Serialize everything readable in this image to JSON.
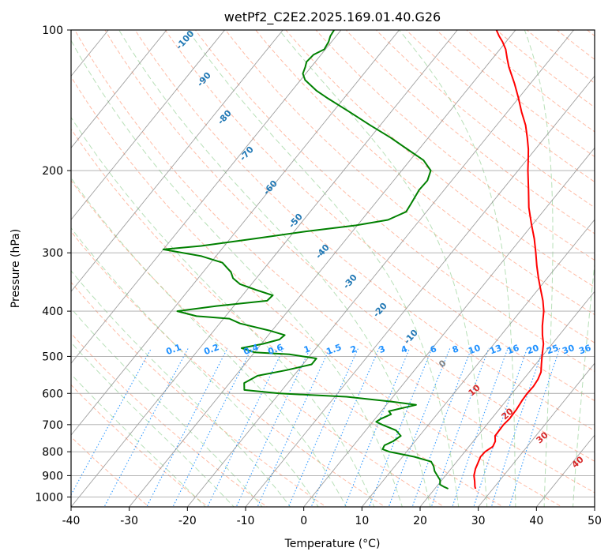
{
  "title": "wetPf2_C2E2.2025.169.01.40.G26",
  "xlabel": "Temperature (°C)",
  "ylabel": "Pressure (hPa)",
  "chart_data": {
    "type": "line",
    "diagram": "skew-T log-P",
    "title": "wetPf2_C2E2.2025.169.01.40.G26",
    "xlabel": "Temperature (°C)",
    "ylabel": "Pressure (hPa)",
    "xlim": [
      -40,
      50
    ],
    "ylim": [
      1050,
      100
    ],
    "yscale": "log",
    "grid": true,
    "x_ticks": [
      -40,
      -30,
      -20,
      -10,
      0,
      10,
      20,
      30,
      40,
      50
    ],
    "y_ticks": [
      1000,
      900,
      800,
      700,
      600,
      500,
      400,
      300,
      200,
      100
    ],
    "colors": {
      "temperature": "#ff0000",
      "dewpoint": "#008000",
      "isotherm": "#808080",
      "dry_adiabat": "#ff9f80",
      "moist_adiabat": "#88cc88",
      "mixing_ratio": "#1e90ff",
      "isobar": "#a0a0a0",
      "dry_label": "#d62728",
      "moist_label": "#1f77b4",
      "moist_label_grey": "#808080",
      "mixing_label": "#1e90ff"
    },
    "series": [
      {
        "key": "temperature",
        "points": [
          [
            960,
            27.0
          ],
          [
            950,
            26.6
          ],
          [
            925,
            25.8
          ],
          [
            900,
            24.9
          ],
          [
            870,
            24.2
          ],
          [
            850,
            23.9
          ],
          [
            820,
            23.4
          ],
          [
            800,
            23.5
          ],
          [
            780,
            24.1
          ],
          [
            760,
            23.8
          ],
          [
            740,
            23.0
          ],
          [
            700,
            22.9
          ],
          [
            680,
            23.1
          ],
          [
            650,
            23.0
          ],
          [
            620,
            22.7
          ],
          [
            600,
            22.6
          ],
          [
            580,
            22.7
          ],
          [
            560,
            22.5
          ],
          [
            540,
            22.0
          ],
          [
            520,
            21.0
          ],
          [
            500,
            20.0
          ],
          [
            470,
            18.5
          ],
          [
            450,
            17.1
          ],
          [
            430,
            15.8
          ],
          [
            400,
            14.0
          ],
          [
            380,
            12.4
          ],
          [
            360,
            10.5
          ],
          [
            340,
            8.5
          ],
          [
            320,
            6.5
          ],
          [
            300,
            4.5
          ],
          [
            280,
            2.3
          ],
          [
            260,
            -0.3
          ],
          [
            240,
            -3.0
          ],
          [
            220,
            -5.5
          ],
          [
            200,
            -8.3
          ],
          [
            190,
            -9.7
          ],
          [
            180,
            -11.2
          ],
          [
            170,
            -13.0
          ],
          [
            160,
            -15.0
          ],
          [
            150,
            -17.5
          ],
          [
            140,
            -20.0
          ],
          [
            130,
            -22.8
          ],
          [
            120,
            -26.0
          ],
          [
            115,
            -27.5
          ],
          [
            110,
            -29.0
          ],
          [
            106,
            -30.6
          ],
          [
            103,
            -32.0
          ],
          [
            100,
            -33.3
          ]
        ]
      },
      {
        "key": "dewpoint",
        "points": [
          [
            960,
            22.3
          ],
          [
            950,
            21.2
          ],
          [
            940,
            20.3
          ],
          [
            920,
            19.7
          ],
          [
            900,
            18.6
          ],
          [
            880,
            17.5
          ],
          [
            860,
            16.7
          ],
          [
            840,
            15.6
          ],
          [
            820,
            12.0
          ],
          [
            800,
            7.0
          ],
          [
            790,
            5.5
          ],
          [
            775,
            5.3
          ],
          [
            760,
            6.2
          ],
          [
            740,
            6.8
          ],
          [
            720,
            5.2
          ],
          [
            700,
            2.0
          ],
          [
            690,
            0.6
          ],
          [
            680,
            1.0
          ],
          [
            665,
            2.1
          ],
          [
            655,
            1.3
          ],
          [
            645,
            3.2
          ],
          [
            635,
            5.1
          ],
          [
            625,
            0.5
          ],
          [
            610,
            -8.0
          ],
          [
            600,
            -20.0
          ],
          [
            590,
            -26.5
          ],
          [
            570,
            -27.5
          ],
          [
            550,
            -26.2
          ],
          [
            535,
            -22.0
          ],
          [
            520,
            -18.5
          ],
          [
            505,
            -18.5
          ],
          [
            495,
            -23.7
          ],
          [
            490,
            -30.0
          ],
          [
            480,
            -32.8
          ],
          [
            470,
            -29.7
          ],
          [
            460,
            -27.5
          ],
          [
            450,
            -27.2
          ],
          [
            440,
            -30.5
          ],
          [
            425,
            -36.5
          ],
          [
            415,
            -39.0
          ],
          [
            410,
            -45.0
          ],
          [
            400,
            -49.0
          ],
          [
            390,
            -43.0
          ],
          [
            380,
            -35.0
          ],
          [
            370,
            -34.8
          ],
          [
            360,
            -38.5
          ],
          [
            350,
            -42.0
          ],
          [
            340,
            -44.0
          ],
          [
            330,
            -45.2
          ],
          [
            315,
            -48.0
          ],
          [
            305,
            -52.5
          ],
          [
            295,
            -60.0
          ],
          [
            290,
            -54.0
          ],
          [
            280,
            -46.0
          ],
          [
            270,
            -38.0
          ],
          [
            262,
            -30.2
          ],
          [
            255,
            -25.5
          ],
          [
            245,
            -23.5
          ],
          [
            235,
            -23.8
          ],
          [
            220,
            -24.3
          ],
          [
            210,
            -24.2
          ],
          [
            200,
            -25.0
          ],
          [
            190,
            -27.7
          ],
          [
            180,
            -32.0
          ],
          [
            170,
            -36.5
          ],
          [
            160,
            -41.7
          ],
          [
            150,
            -47.0
          ],
          [
            140,
            -52.8
          ],
          [
            135,
            -55.7
          ],
          [
            128,
            -59.2
          ],
          [
            124,
            -60.5
          ],
          [
            120,
            -61.0
          ],
          [
            117,
            -61.5
          ],
          [
            113,
            -61.3
          ],
          [
            110,
            -60.2
          ],
          [
            106,
            -60.5
          ],
          [
            103,
            -61.0
          ],
          [
            100,
            -61.2
          ]
        ]
      }
    ],
    "dry_adiabat_labels": [
      "10",
      "20",
      "30",
      "40"
    ],
    "moist_adiabat_labels": [
      "-100",
      "-90",
      "-80",
      "-70",
      "-60",
      "-50",
      "-40",
      "-30",
      "-20",
      "-10",
      "0"
    ],
    "mixing_ratio_labels": [
      "0.1",
      "0.2",
      "0.4",
      "0.6",
      "1",
      "1.5",
      "2",
      "3",
      "4",
      "6",
      "8",
      "10",
      "13",
      "16",
      "20",
      "25",
      "30",
      "36"
    ]
  }
}
